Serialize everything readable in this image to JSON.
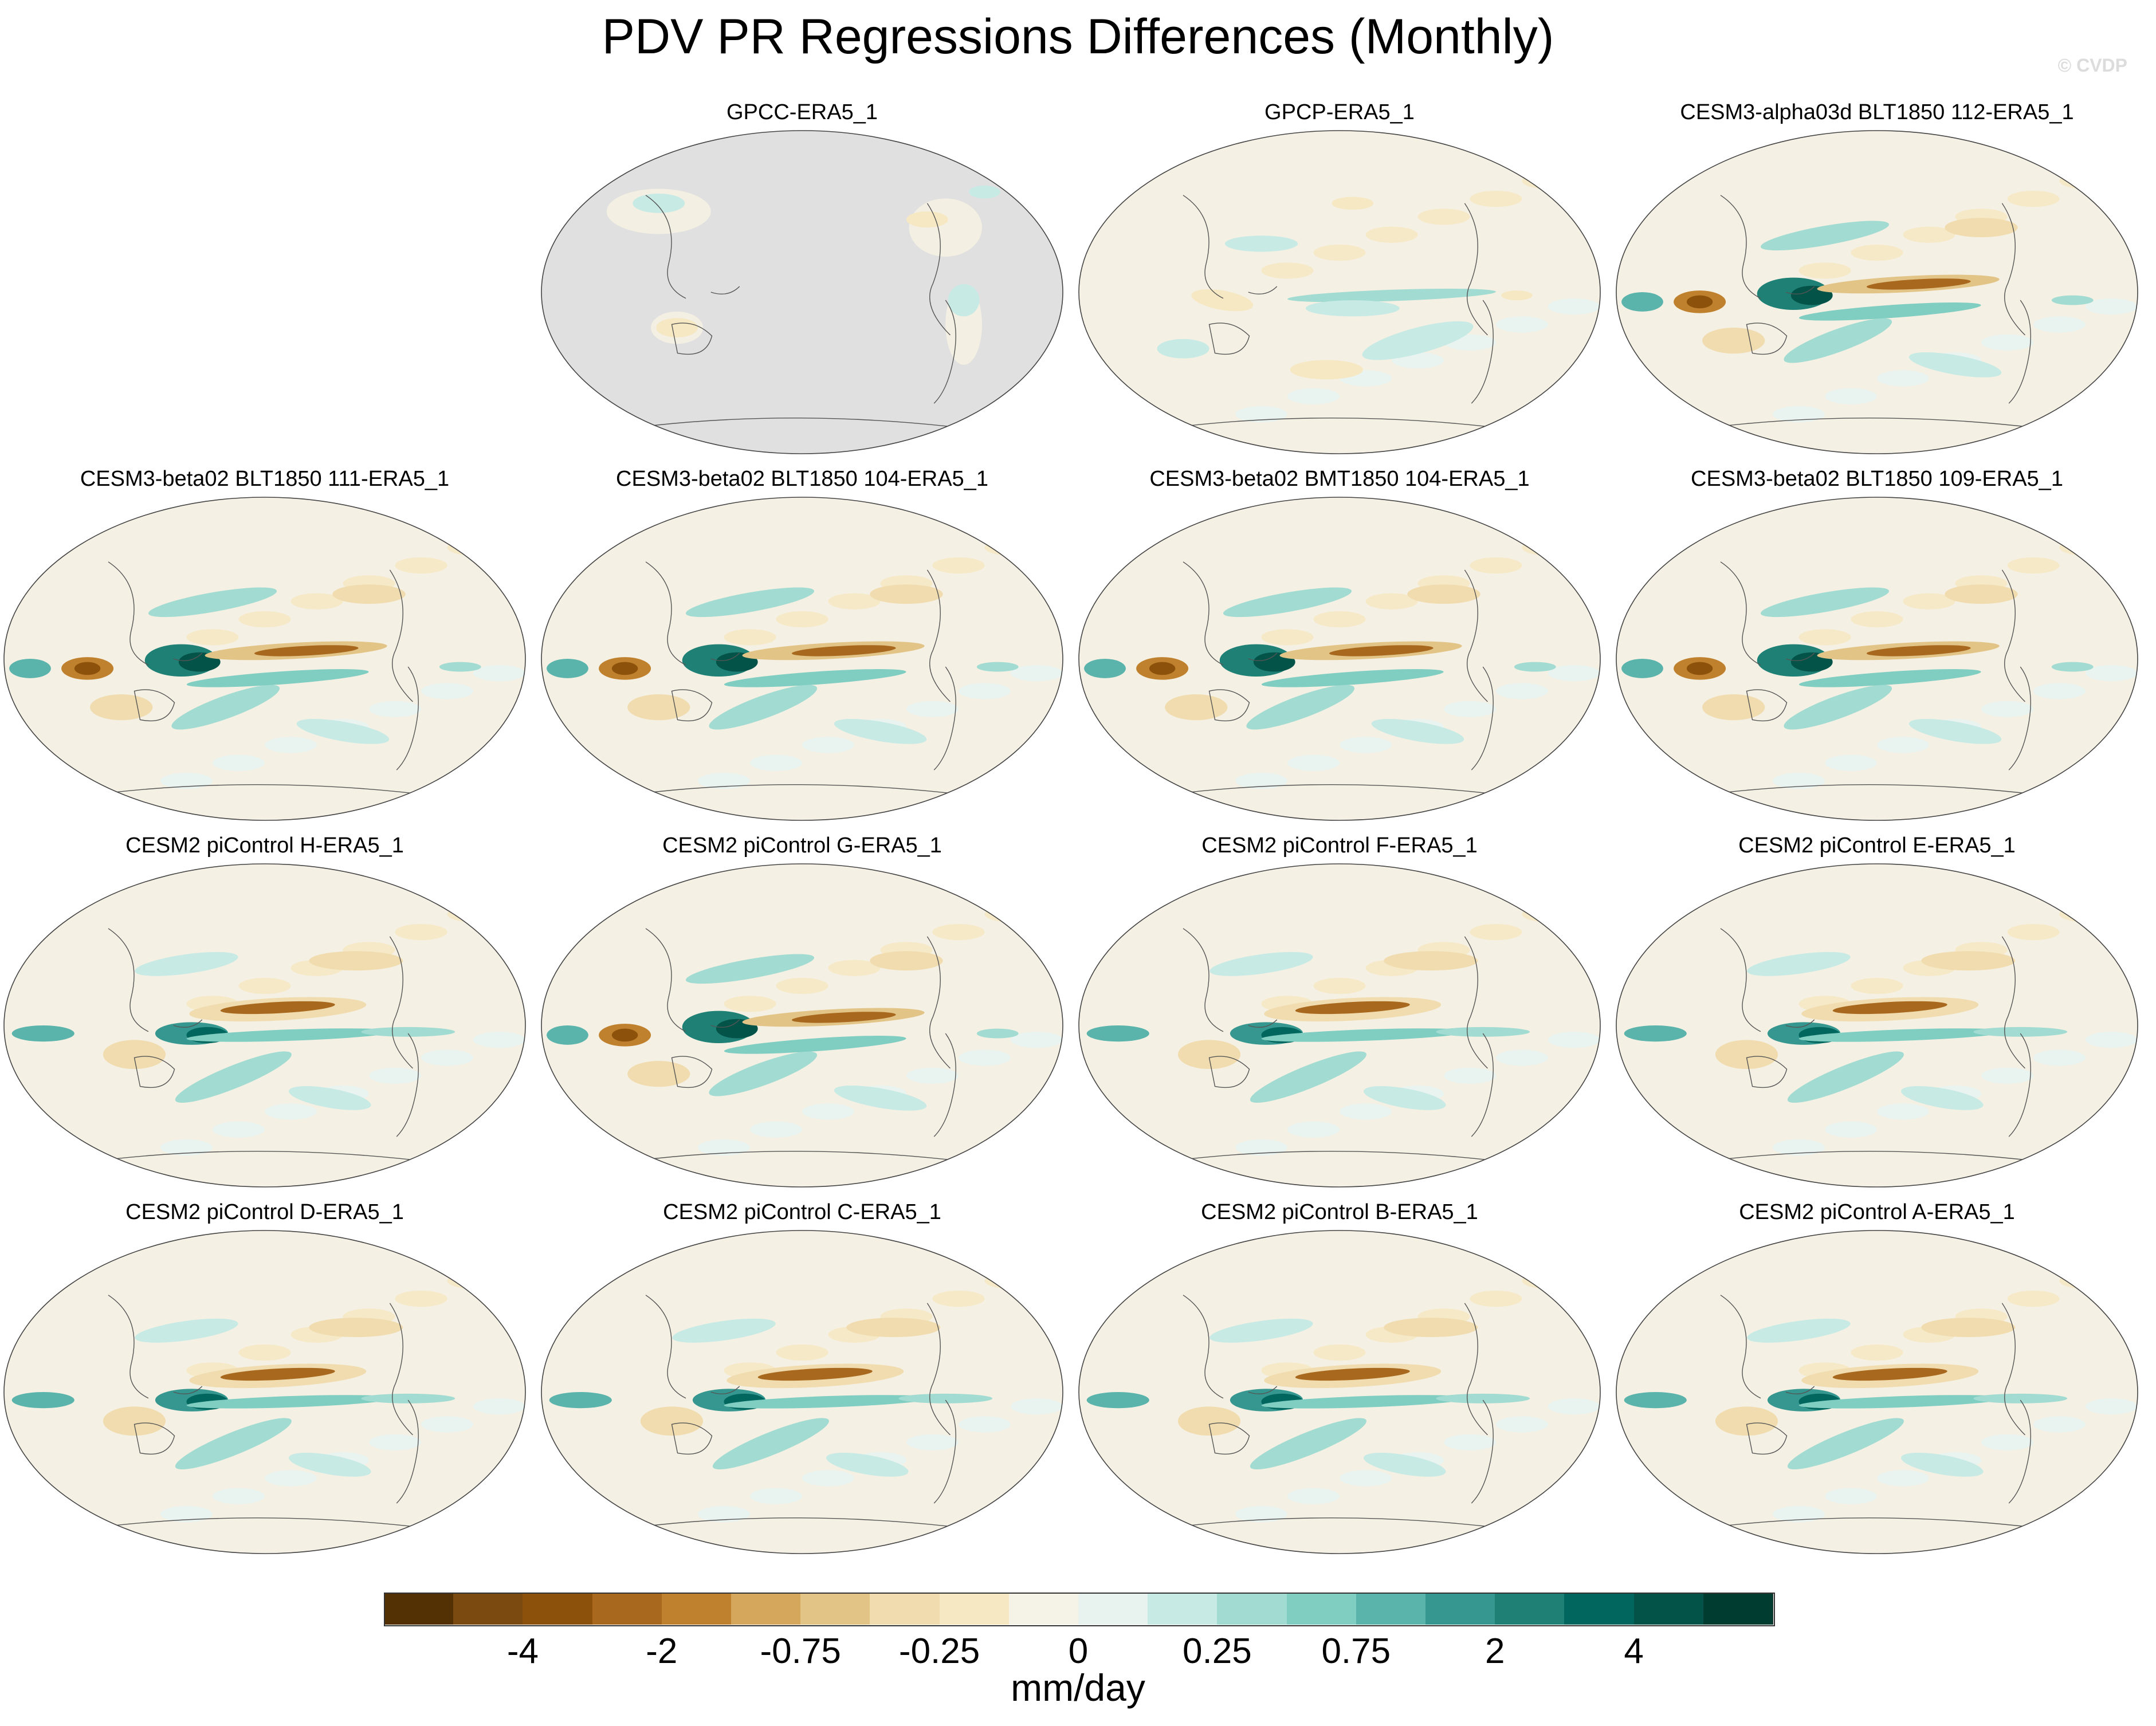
{
  "title": "PDV PR Regressions Differences (Monthly)",
  "copyright": "© CVDP",
  "panels": [
    {
      "name": "GPCC-ERA5_1",
      "pattern": "gpcc"
    },
    {
      "name": "GPCP-ERA5_1",
      "pattern": "gpcp"
    },
    {
      "name": "CESM3-alpha03d BLT1850 112-ERA5_1",
      "pattern": "model-a"
    },
    {
      "name": "CESM3-beta02 BLT1850 111-ERA5_1",
      "pattern": "model-a"
    },
    {
      "name": "CESM3-beta02 BLT1850 104-ERA5_1",
      "pattern": "model-a"
    },
    {
      "name": "CESM3-beta02 BMT1850 104-ERA5_1",
      "pattern": "model-a"
    },
    {
      "name": "CESM3-beta02 BLT1850 109-ERA5_1",
      "pattern": "model-a"
    },
    {
      "name": "CESM2 piControl H-ERA5_1",
      "pattern": "model-b"
    },
    {
      "name": "CESM2 piControl G-ERA5_1",
      "pattern": "model-a"
    },
    {
      "name": "CESM2 piControl F-ERA5_1",
      "pattern": "model-b"
    },
    {
      "name": "CESM2 piControl E-ERA5_1",
      "pattern": "model-b"
    },
    {
      "name": "CESM2 piControl D-ERA5_1",
      "pattern": "model-b"
    },
    {
      "name": "CESM2 piControl C-ERA5_1",
      "pattern": "model-b"
    },
    {
      "name": "CESM2 piControl B-ERA5_1",
      "pattern": "model-b"
    },
    {
      "name": "CESM2 piControl A-ERA5_1",
      "pattern": "model-b"
    }
  ],
  "colorbar": {
    "unit": "mm/day",
    "colors": [
      "#543005",
      "#7a4a10",
      "#8c510a",
      "#a8691f",
      "#bf812d",
      "#d4a75d",
      "#e3c487",
      "#f0dcae",
      "#f6e8c3",
      "#f5f2e8",
      "#e8f3f0",
      "#c7eae5",
      "#a2dbd1",
      "#80cdc1",
      "#5ab4ac",
      "#35978f",
      "#1f8075",
      "#01665e",
      "#045349",
      "#003c30"
    ],
    "labels": [
      "-4",
      "-2",
      "-0.75",
      "-0.25",
      "0",
      "0.25",
      "0.75",
      "2",
      "4"
    ],
    "label_boundaries": [
      2,
      4,
      6,
      8,
      10,
      12,
      14,
      16,
      18
    ]
  }
}
